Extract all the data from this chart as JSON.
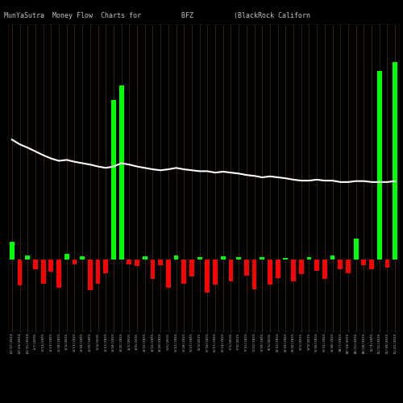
{
  "title": "MunYaSutra  Money Flow  Charts for          BFZ          (BlackRock Californ",
  "bg_color": "#000000",
  "bar_color_pos": "#00ff00",
  "bar_color_neg": "#ff0000",
  "grid_color": "#3a2000",
  "line_color": "#ffffff",
  "title_color": "#c0c0c0",
  "title_fontsize": 6.0,
  "bar_values": [
    0.38,
    -0.55,
    0.09,
    -0.2,
    -0.5,
    -0.25,
    -0.6,
    0.13,
    -0.09,
    0.07,
    -0.65,
    -0.5,
    -0.28,
    3.4,
    3.7,
    -0.09,
    -0.14,
    0.08,
    -0.4,
    -0.12,
    -0.6,
    0.09,
    -0.5,
    -0.35,
    0.05,
    -0.7,
    -0.52,
    0.07,
    -0.45,
    0.06,
    -0.33,
    -0.62,
    0.05,
    -0.52,
    -0.38,
    0.04,
    -0.45,
    -0.3,
    0.06,
    -0.24,
    -0.4,
    0.09,
    -0.2,
    -0.28,
    0.45,
    -0.12,
    -0.2,
    4.0,
    -0.17,
    4.2
  ],
  "sma_values": [
    2.55,
    2.45,
    2.38,
    2.3,
    2.22,
    2.15,
    2.1,
    2.12,
    2.08,
    2.05,
    2.02,
    1.98,
    1.95,
    1.98,
    2.05,
    2.02,
    1.98,
    1.95,
    1.92,
    1.9,
    1.92,
    1.95,
    1.92,
    1.9,
    1.88,
    1.88,
    1.85,
    1.87,
    1.85,
    1.83,
    1.8,
    1.78,
    1.75,
    1.77,
    1.75,
    1.73,
    1.7,
    1.68,
    1.68,
    1.7,
    1.68,
    1.68,
    1.65,
    1.65,
    1.67,
    1.67,
    1.65,
    1.65,
    1.65,
    1.67
  ],
  "xlabels": [
    "12/17/2014",
    "12/24/2014",
    "12/31/2014",
    "1/7/2015",
    "1/14/2015",
    "1/21/2015",
    "1/28/2015",
    "2/4/2015",
    "2/11/2015",
    "2/18/2015",
    "2/25/2015",
    "3/4/2015",
    "3/11/2015",
    "3/18/2015",
    "3/25/2015",
    "4/1/2015",
    "4/8/2015",
    "4/15/2015",
    "4/22/2015",
    "4/29/2015",
    "5/6/2015",
    "5/13/2015",
    "5/20/2015",
    "5/27/2015",
    "6/3/2015",
    "6/10/2015",
    "6/17/2015",
    "6/24/2015",
    "7/1/2015",
    "7/8/2015",
    "7/15/2015",
    "7/22/2015",
    "7/29/2015",
    "8/5/2015",
    "8/12/2015",
    "8/19/2015",
    "8/26/2015",
    "9/2/2015",
    "9/9/2015",
    "9/16/2015",
    "9/23/2015",
    "9/30/2015",
    "10/7/2015",
    "10/14/2015",
    "10/21/2015",
    "10/28/2015",
    "11/4/2015",
    "11/11/2015",
    "11/18/2015",
    "11/25/2015"
  ],
  "ylim_min": -1.5,
  "ylim_max": 5.0
}
